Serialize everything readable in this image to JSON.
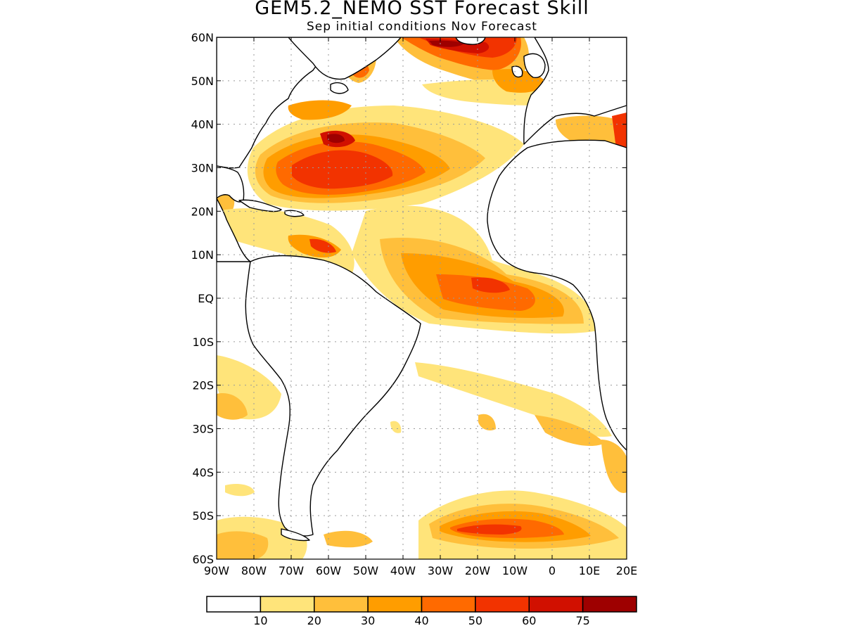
{
  "title": "GEM5.2_NEMO SST Forecast Skill",
  "subtitle": "Sep initial conditions  Nov Forecast",
  "lat_labels": [
    "60N",
    "50N",
    "40N",
    "30N",
    "20N",
    "10N",
    "EQ",
    "10S",
    "20S",
    "30S",
    "40S",
    "50S",
    "60S"
  ],
  "lon_labels": [
    "90W",
    "80W",
    "70W",
    "60W",
    "50W",
    "40W",
    "30W",
    "20W",
    "10W",
    "0",
    "10E",
    "20E"
  ],
  "colorbar": {
    "labels": [
      "10",
      "20",
      "30",
      "40",
      "50",
      "60",
      "75"
    ],
    "colors": [
      "#ffffff",
      "#ffe47a",
      "#ffbf3b",
      "#ff9d00",
      "#ff6a00",
      "#f23300",
      "#d11000",
      "#9e0000"
    ]
  },
  "palette": {
    "land_fill": "#ffffff",
    "coast": "#000000",
    "grid": "#9a9a9a"
  }
}
